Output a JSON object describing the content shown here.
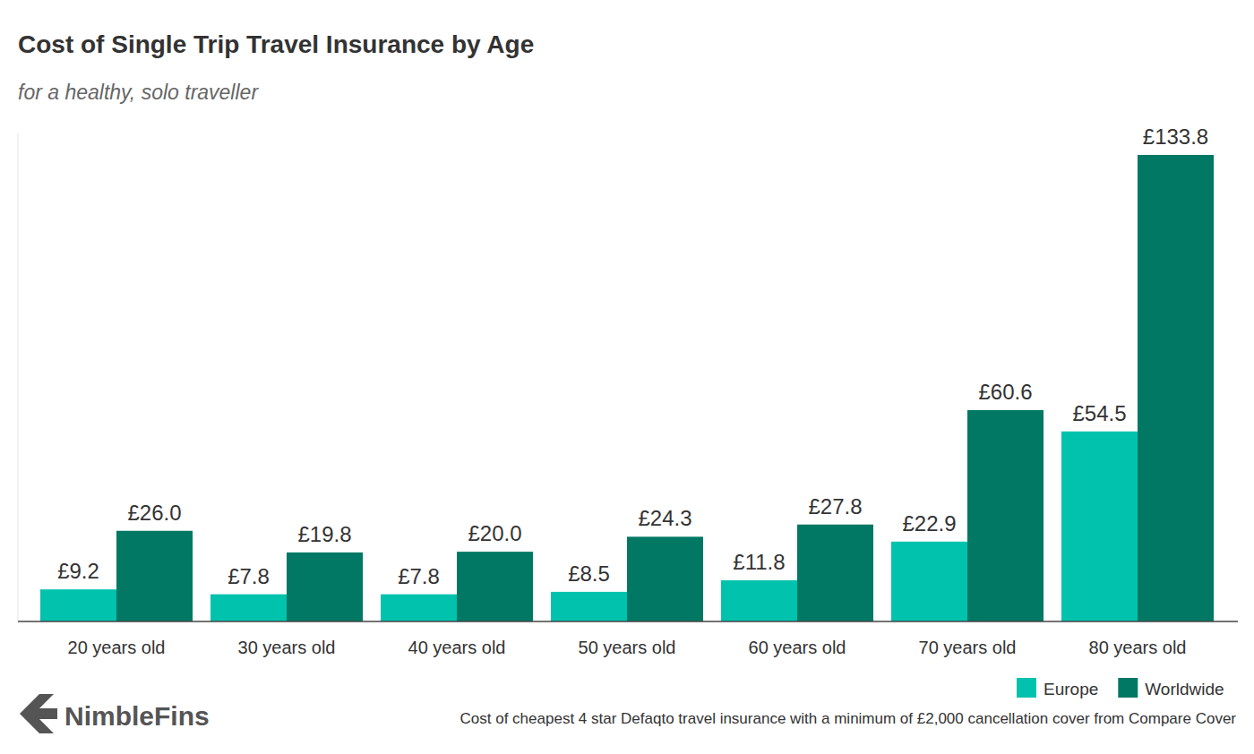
{
  "chart_data": {
    "type": "bar",
    "title": "Cost of Single Trip Travel Insurance by Age",
    "subtitle": "for a healthy, solo traveller",
    "note": "Cost of cheapest 4 star Defaqto travel insurance with a minimum of £2,000 cancellation cover from Compare Cover",
    "logo": "NimbleFins",
    "categories": [
      "20 years old",
      "30 years old",
      "40 years old",
      "50 years old",
      "60 years old",
      "70 years old",
      "80 years old"
    ],
    "series": [
      {
        "name": "Europe",
        "color": "#00c2ad",
        "values": [
          9.2,
          7.8,
          7.8,
          8.5,
          11.8,
          22.9,
          54.5
        ],
        "value_labels": [
          "£9.2",
          "£7.8",
          "£7.8",
          "£8.5",
          "£11.8",
          "£22.9",
          "£54.5"
        ]
      },
      {
        "name": "Worldwide",
        "color": "#007864",
        "values": [
          26.0,
          19.8,
          20.0,
          24.3,
          27.8,
          60.6,
          133.8
        ],
        "value_labels": [
          "£26.0",
          "£19.8",
          "£20.0",
          "£24.3",
          "£27.8",
          "£60.6",
          "£133.8"
        ]
      }
    ],
    "ylim": [
      0,
      140
    ],
    "grid": false,
    "data_labels": true,
    "tick_labels": "x",
    "legend": "bottom-right"
  }
}
